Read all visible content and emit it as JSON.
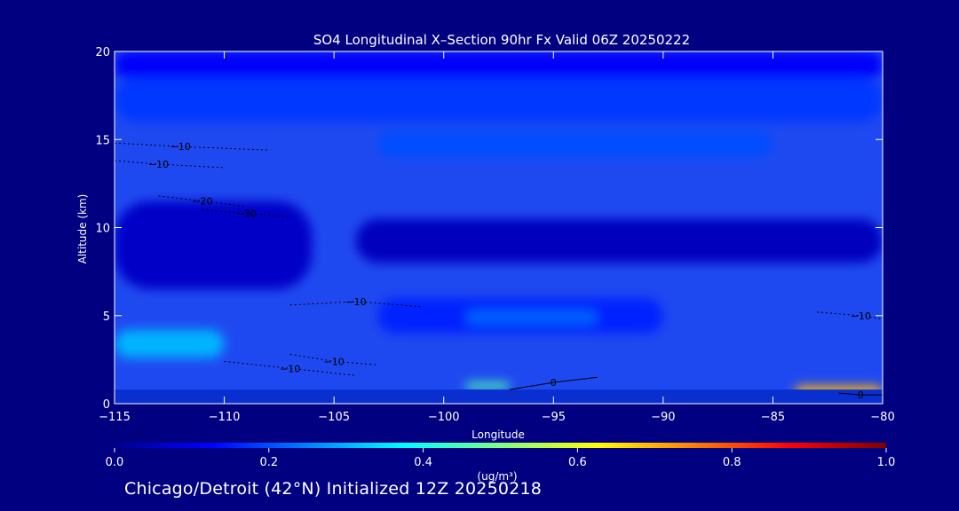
{
  "chart_data": {
    "type": "heatmap",
    "title": "SO4 Longitudinal X–Section 90hr  Fx Valid 06Z 20250222",
    "xlabel": "Longitude",
    "ylabel": "Altitude (km)",
    "xlim": [
      -115,
      -80
    ],
    "ylim": [
      0,
      20
    ],
    "x_ticks": [
      -115,
      -110,
      -105,
      -100,
      -95,
      -90,
      -85,
      -80
    ],
    "x_tick_labels": [
      "−115",
      "−110",
      "−105",
      "−100",
      "−95",
      "−90",
      "−85",
      "−80"
    ],
    "y_ticks": [
      0,
      5,
      10,
      15,
      20
    ],
    "colorbar": {
      "min": 0.0,
      "max": 1.0,
      "ticks": [
        0.0,
        0.2,
        0.4,
        0.6,
        0.8,
        1.0
      ],
      "tick_labels": [
        "0.0",
        "0.2",
        "0.4",
        "0.6",
        "0.8",
        "1.0"
      ],
      "unit_label": "(ug/m³)"
    },
    "fill_bands": [
      {
        "level": 0.12,
        "x": [
          -115,
          -80
        ],
        "y": [
          18.5,
          20
        ]
      },
      {
        "level": 0.18,
        "x": [
          -115,
          -80
        ],
        "y": [
          16.0,
          18.5
        ]
      },
      {
        "level": 0.2,
        "x": [
          -103,
          -85
        ],
        "y": [
          14.0,
          15.5
        ]
      },
      {
        "level": 0.07,
        "x": [
          -115,
          -106
        ],
        "y": [
          6.5,
          11.5
        ]
      },
      {
        "level": 0.06,
        "x": [
          -104,
          -80
        ],
        "y": [
          8.0,
          10.5
        ]
      },
      {
        "level": 0.16,
        "x": [
          -103,
          -90
        ],
        "y": [
          4.0,
          6.0
        ]
      },
      {
        "level": 0.22,
        "x": [
          -99,
          -93
        ],
        "y": [
          4.5,
          5.3
        ]
      },
      {
        "level": 0.3,
        "x": [
          -115,
          -110
        ],
        "y": [
          2.6,
          4.2
        ]
      },
      {
        "level": 0.45,
        "x": [
          -99,
          -97
        ],
        "y": [
          0.8,
          1.2
        ]
      },
      {
        "level": 0.7,
        "x": [
          -84,
          -80
        ],
        "y": [
          0.3,
          1.0
        ]
      }
    ],
    "contours": [
      {
        "label": "−10",
        "x": [
          -115,
          -112,
          -108
        ],
        "y": [
          14.8,
          14.6,
          14.4
        ]
      },
      {
        "label": "−10",
        "x": [
          -115,
          -113,
          -110
        ],
        "y": [
          13.8,
          13.6,
          13.4
        ]
      },
      {
        "label": "−20",
        "x": [
          -113,
          -111,
          -109
        ],
        "y": [
          11.8,
          11.5,
          11.2
        ]
      },
      {
        "label": "−30",
        "x": [
          -111,
          -109,
          -107
        ],
        "y": [
          11.0,
          10.8,
          10.6
        ]
      },
      {
        "label": "−10",
        "x": [
          -107,
          -104,
          -101
        ],
        "y": [
          5.6,
          5.8,
          5.5
        ]
      },
      {
        "label": "−10",
        "x": [
          -110,
          -107,
          -104
        ],
        "y": [
          2.4,
          2.0,
          1.6
        ]
      },
      {
        "label": "−10",
        "x": [
          -107,
          -105,
          -103
        ],
        "y": [
          2.8,
          2.4,
          2.2
        ]
      },
      {
        "label": "0",
        "x": [
          -97,
          -95,
          -93
        ],
        "y": [
          0.8,
          1.2,
          1.5
        ]
      },
      {
        "label": "0",
        "x": [
          -82,
          -81,
          -80
        ],
        "y": [
          0.6,
          0.5,
          0.5
        ]
      },
      {
        "label": "−10",
        "x": [
          -83,
          -81,
          -80
        ],
        "y": [
          5.2,
          5.0,
          4.8
        ]
      }
    ]
  },
  "footer": "Chicago/Detroit (42°N) Initialized 12Z 20250218"
}
